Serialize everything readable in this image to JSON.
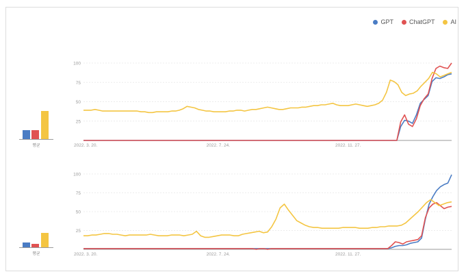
{
  "legend": [
    {
      "name": "GPT",
      "color": "#4a7cc4"
    },
    {
      "name": "ChatGPT",
      "color": "#e05252"
    },
    {
      "name": "AI",
      "color": "#f4c542"
    }
  ],
  "chart_data": [
    {
      "type": "line",
      "ylim": [
        0,
        100
      ],
      "ytick_labels": [
        "100",
        "75",
        "50",
        "25"
      ],
      "xtick_labels": [
        "2022. 3. 20.",
        "2022. 7. 24.",
        "2022. 11. 27."
      ],
      "average_label": "평균",
      "averages": [
        {
          "name": "GPT",
          "value": 15
        },
        {
          "name": "ChatGPT",
          "value": 16
        },
        {
          "name": "AI",
          "value": 49
        }
      ],
      "series": [
        {
          "name": "GPT",
          "values": [
            0,
            0,
            0,
            0,
            0,
            0,
            0,
            0,
            0,
            0,
            0,
            0,
            0,
            0,
            0,
            0,
            0,
            0,
            0,
            0,
            0,
            0,
            0,
            0,
            0,
            0,
            0,
            0,
            0,
            0,
            0,
            0,
            0,
            0,
            0,
            0,
            0,
            0,
            0,
            0,
            0,
            0,
            0,
            0,
            0,
            0,
            0,
            0,
            0,
            0,
            0,
            0,
            0,
            0,
            0,
            0,
            0,
            0,
            0,
            0,
            0,
            0,
            0,
            0,
            0,
            0,
            0,
            0,
            0,
            0,
            0,
            0,
            0,
            0,
            0,
            0,
            0,
            0,
            0,
            0,
            0,
            18,
            26,
            25,
            22,
            33,
            48,
            53,
            58,
            76,
            81,
            80,
            82,
            85,
            86
          ]
        },
        {
          "name": "ChatGPT",
          "values": [
            0,
            0,
            0,
            0,
            0,
            0,
            0,
            0,
            0,
            0,
            0,
            0,
            0,
            0,
            0,
            0,
            0,
            0,
            0,
            0,
            0,
            0,
            0,
            0,
            0,
            0,
            0,
            0,
            0,
            0,
            0,
            0,
            0,
            0,
            0,
            0,
            0,
            0,
            0,
            0,
            0,
            0,
            0,
            0,
            0,
            0,
            0,
            0,
            0,
            0,
            0,
            0,
            0,
            0,
            0,
            0,
            0,
            0,
            0,
            0,
            0,
            0,
            0,
            0,
            0,
            0,
            0,
            0,
            0,
            0,
            0,
            0,
            0,
            0,
            0,
            0,
            0,
            0,
            0,
            0,
            0,
            24,
            33,
            21,
            18,
            28,
            45,
            54,
            60,
            80,
            93,
            96,
            94,
            93,
            100
          ]
        },
        {
          "name": "AI",
          "values": [
            39,
            39,
            39,
            40,
            39,
            38,
            38,
            38,
            38,
            38,
            38,
            38,
            38,
            38,
            38,
            37,
            37,
            36,
            36,
            37,
            37,
            37,
            37,
            38,
            38,
            39,
            41,
            44,
            43,
            42,
            40,
            39,
            38,
            38,
            37,
            37,
            37,
            37,
            38,
            38,
            39,
            39,
            38,
            39,
            40,
            40,
            41,
            42,
            43,
            42,
            41,
            40,
            40,
            41,
            42,
            42,
            42,
            43,
            43,
            44,
            45,
            45,
            46,
            46,
            47,
            48,
            46,
            45,
            45,
            45,
            46,
            47,
            46,
            45,
            44,
            45,
            46,
            48,
            52,
            62,
            78,
            76,
            72,
            62,
            58,
            60,
            61,
            64,
            70,
            75,
            80,
            88,
            86,
            82,
            84,
            86,
            88
          ]
        }
      ]
    },
    {
      "type": "line",
      "ylim": [
        0,
        100
      ],
      "ytick_labels": [
        "100",
        "75",
        "50",
        "25"
      ],
      "xtick_labels": [
        "2022. 3. 20.",
        "2022. 7. 24.",
        "2022. 11. 27."
      ],
      "average_label": "평균",
      "averages": [
        {
          "name": "GPT",
          "value": 10
        },
        {
          "name": "ChatGPT",
          "value": 7
        },
        {
          "name": "AI",
          "value": 29
        }
      ],
      "series": [
        {
          "name": "GPT",
          "values": [
            1,
            1,
            1,
            1,
            1,
            1,
            1,
            1,
            1,
            1,
            1,
            1,
            1,
            1,
            1,
            1,
            1,
            1,
            1,
            1,
            1,
            1,
            1,
            1,
            1,
            1,
            1,
            1,
            1,
            1,
            1,
            1,
            1,
            1,
            1,
            1,
            1,
            1,
            1,
            1,
            1,
            1,
            1,
            1,
            1,
            1,
            1,
            1,
            1,
            1,
            1,
            1,
            1,
            1,
            1,
            1,
            1,
            1,
            1,
            1,
            1,
            1,
            1,
            1,
            1,
            1,
            1,
            1,
            1,
            1,
            1,
            1,
            1,
            1,
            1,
            1,
            1,
            1,
            1,
            1,
            1,
            1,
            2,
            4,
            5,
            5,
            6,
            8,
            9,
            10,
            15,
            40,
            60,
            70,
            78,
            83,
            86,
            88,
            99
          ]
        },
        {
          "name": "ChatGPT",
          "values": [
            1,
            1,
            1,
            1,
            1,
            1,
            1,
            1,
            1,
            1,
            1,
            1,
            1,
            1,
            1,
            1,
            1,
            1,
            1,
            1,
            1,
            1,
            1,
            1,
            1,
            1,
            1,
            1,
            1,
            1,
            1,
            1,
            1,
            1,
            1,
            1,
            1,
            1,
            1,
            1,
            1,
            1,
            1,
            1,
            1,
            1,
            0,
            1,
            1,
            0,
            1,
            1,
            1,
            1,
            1,
            1,
            1,
            1,
            1,
            1,
            1,
            1,
            1,
            1,
            1,
            1,
            1,
            1,
            1,
            1,
            1,
            1,
            1,
            1,
            1,
            1,
            1,
            1,
            1,
            1,
            1,
            1,
            5,
            10,
            9,
            7,
            10,
            11,
            12,
            13,
            18,
            42,
            55,
            60,
            62,
            58,
            54,
            56,
            57
          ]
        },
        {
          "name": "AI",
          "values": [
            18,
            18,
            19,
            19,
            20,
            21,
            21,
            20,
            20,
            19,
            18,
            19,
            19,
            19,
            19,
            19,
            20,
            19,
            18,
            18,
            18,
            19,
            19,
            19,
            18,
            19,
            20,
            24,
            18,
            16,
            16,
            17,
            18,
            19,
            19,
            19,
            18,
            18,
            20,
            21,
            22,
            23,
            24,
            22,
            23,
            30,
            40,
            55,
            60,
            52,
            45,
            38,
            35,
            32,
            30,
            29,
            29,
            28,
            28,
            28,
            28,
            28,
            29,
            29,
            29,
            29,
            28,
            28,
            28,
            29,
            29,
            30,
            30,
            31,
            31,
            31,
            32,
            35,
            40,
            45,
            50,
            56,
            62,
            66,
            62,
            58,
            60,
            62,
            63
          ]
        }
      ]
    }
  ]
}
